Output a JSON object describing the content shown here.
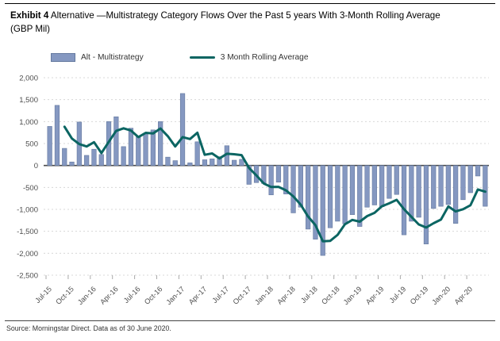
{
  "header": {
    "exhibit_label": "Exhibit 4",
    "title_rest": " Alternative —Multistrategy Category Flows Over the Past 5 years With 3-Month Rolling Average",
    "subtitle": "(GBP Mil)"
  },
  "legend": {
    "bar_label": "Alt - Multistrategy",
    "line_label": "3 Month Rolling Average"
  },
  "source_line": "Source: Morningstar Direct. Data as of 30 June 2020.",
  "colors": {
    "bar_fill": "#8598c1",
    "bar_stroke": "#64799f",
    "line": "#0b6562",
    "grid": "#d8d8d8",
    "zero_axis": "#4a4a4a",
    "axis_text": "#4d4d4d",
    "tick": "#aaaaaa"
  },
  "chart_data": {
    "type": "bar",
    "title": "Exhibit 4 Alternative —Multistrategy Category Flows Over the Past 5 years With 3-Month Rolling Average (GBP Mil)",
    "xlabel": "",
    "ylabel": "GBP Mil",
    "ylim": [
      -2500,
      2000
    ],
    "grid": "dashed horizontal",
    "legend_position": "top",
    "x_tick_every": 3,
    "categories": [
      "Jul-15",
      "Aug-15",
      "Sep-15",
      "Oct-15",
      "Nov-15",
      "Dec-15",
      "Jan-16",
      "Feb-16",
      "Mar-16",
      "Apr-16",
      "May-16",
      "Jun-16",
      "Jul-16",
      "Aug-16",
      "Sep-16",
      "Oct-16",
      "Nov-16",
      "Dec-16",
      "Jan-17",
      "Feb-17",
      "Mar-17",
      "Apr-17",
      "May-17",
      "Jun-17",
      "Jul-17",
      "Aug-17",
      "Sep-17",
      "Oct-17",
      "Nov-17",
      "Dec-17",
      "Jan-18",
      "Feb-18",
      "Mar-18",
      "Apr-18",
      "May-18",
      "Jun-18",
      "Jul-18",
      "Aug-18",
      "Sep-18",
      "Oct-18",
      "Nov-18",
      "Dec-18",
      "Jan-19",
      "Feb-19",
      "Mar-19",
      "Apr-19",
      "May-19",
      "Jun-19",
      "Jul-19",
      "Aug-19",
      "Sep-19",
      "Oct-19",
      "Nov-19",
      "Dec-19",
      "Jan-20",
      "Feb-20",
      "Mar-20",
      "Apr-20",
      "May-20",
      "Jun-20"
    ],
    "series": [
      {
        "name": "Alt - Multistrategy",
        "type": "bar",
        "values": [
          890,
          1370,
          390,
          80,
          990,
          230,
          370,
          250,
          1000,
          1110,
          430,
          850,
          660,
          720,
          810,
          1000,
          190,
          110,
          1640,
          60,
          540,
          130,
          150,
          200,
          450,
          120,
          140,
          -430,
          -390,
          -410,
          -670,
          -380,
          -650,
          -1080,
          -950,
          -1450,
          -1680,
          -2050,
          -1420,
          -1270,
          -1330,
          -1120,
          -1390,
          -950,
          -900,
          -940,
          -750,
          -660,
          -1580,
          -1270,
          -1180,
          -1790,
          -980,
          -930,
          -890,
          -1320,
          -780,
          -620,
          -240,
          -930
        ]
      },
      {
        "name": "3 Month Rolling Average",
        "type": "line",
        "derived": "3-month rolling average of Alt - Multistrategy bar values",
        "window": 3
      }
    ],
    "y_ticks": [
      {
        "v": 2000,
        "label": "2,000"
      },
      {
        "v": 1500,
        "label": "1,500"
      },
      {
        "v": 1000,
        "label": "1,000"
      },
      {
        "v": 500,
        "label": "500"
      },
      {
        "v": 0,
        "label": "0"
      },
      {
        "v": -500,
        "label": "-500"
      },
      {
        "v": -1000,
        "label": "-1,000"
      },
      {
        "v": -1500,
        "label": "-1,500"
      },
      {
        "v": -2000,
        "label": "-2,000"
      },
      {
        "v": -2500,
        "label": "-2,500"
      }
    ]
  }
}
